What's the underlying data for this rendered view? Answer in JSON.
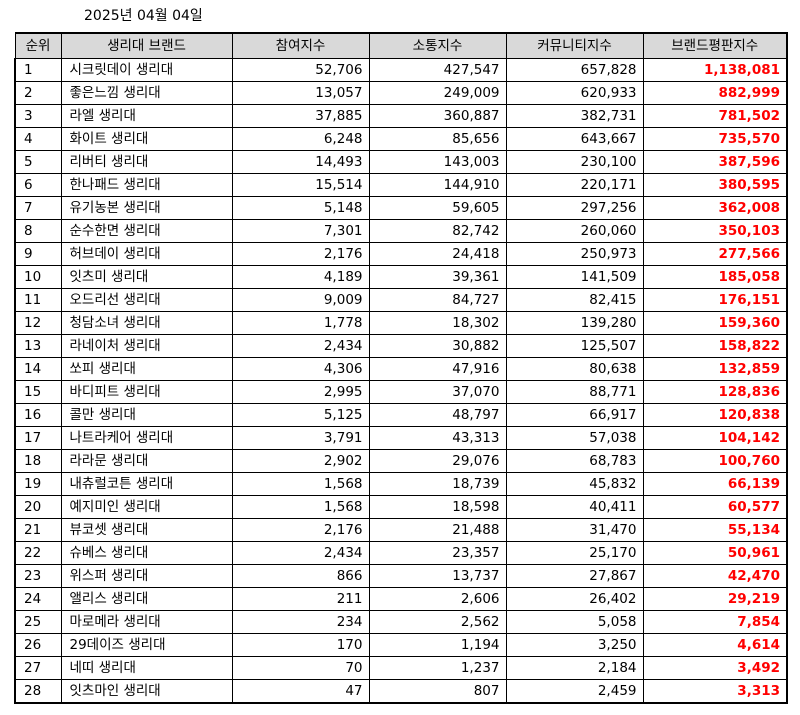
{
  "date": "2025년 04월 04일",
  "headers": [
    "순위",
    "생리대 브랜드",
    "참여지수",
    "소통지수",
    "커뮤니티지수",
    "브랜드평판지수"
  ],
  "rows": [
    {
      "rank": "1",
      "brand": "시크릿데이 생리대",
      "participation": "52,706",
      "communication": "427,547",
      "community": "657,828",
      "bpi": "1,138,081"
    },
    {
      "rank": "2",
      "brand": "좋은느낌 생리대",
      "participation": "13,057",
      "communication": "249,009",
      "community": "620,933",
      "bpi": "882,999"
    },
    {
      "rank": "3",
      "brand": "라엘 생리대",
      "participation": "37,885",
      "communication": "360,887",
      "community": "382,731",
      "bpi": "781,502"
    },
    {
      "rank": "4",
      "brand": "화이트 생리대",
      "participation": "6,248",
      "communication": "85,656",
      "community": "643,667",
      "bpi": "735,570"
    },
    {
      "rank": "5",
      "brand": "리버티 생리대",
      "participation": "14,493",
      "communication": "143,003",
      "community": "230,100",
      "bpi": "387,596"
    },
    {
      "rank": "6",
      "brand": "한나패드 생리대",
      "participation": "15,514",
      "communication": "144,910",
      "community": "220,171",
      "bpi": "380,595"
    },
    {
      "rank": "7",
      "brand": "유기농본 생리대",
      "participation": "5,148",
      "communication": "59,605",
      "community": "297,256",
      "bpi": "362,008"
    },
    {
      "rank": "8",
      "brand": "순수한면 생리대",
      "participation": "7,301",
      "communication": "82,742",
      "community": "260,060",
      "bpi": "350,103"
    },
    {
      "rank": "9",
      "brand": "허브데이 생리대",
      "participation": "2,176",
      "communication": "24,418",
      "community": "250,973",
      "bpi": "277,566"
    },
    {
      "rank": "10",
      "brand": "잇츠미 생리대",
      "participation": "4,189",
      "communication": "39,361",
      "community": "141,509",
      "bpi": "185,058"
    },
    {
      "rank": "11",
      "brand": "오드리선 생리대",
      "participation": "9,009",
      "communication": "84,727",
      "community": "82,415",
      "bpi": "176,151"
    },
    {
      "rank": "12",
      "brand": "청담소녀 생리대",
      "participation": "1,778",
      "communication": "18,302",
      "community": "139,280",
      "bpi": "159,360"
    },
    {
      "rank": "13",
      "brand": "라네이처 생리대",
      "participation": "2,434",
      "communication": "30,882",
      "community": "125,507",
      "bpi": "158,822"
    },
    {
      "rank": "14",
      "brand": "쏘피 생리대",
      "participation": "4,306",
      "communication": "47,916",
      "community": "80,638",
      "bpi": "132,859"
    },
    {
      "rank": "15",
      "brand": "바디피트 생리대",
      "participation": "2,995",
      "communication": "37,070",
      "community": "88,771",
      "bpi": "128,836"
    },
    {
      "rank": "16",
      "brand": "콜만 생리대",
      "participation": "5,125",
      "communication": "48,797",
      "community": "66,917",
      "bpi": "120,838"
    },
    {
      "rank": "17",
      "brand": "나트라케어 생리대",
      "participation": "3,791",
      "communication": "43,313",
      "community": "57,038",
      "bpi": "104,142"
    },
    {
      "rank": "18",
      "brand": "라라문 생리대",
      "participation": "2,902",
      "communication": "29,076",
      "community": "68,783",
      "bpi": "100,760"
    },
    {
      "rank": "19",
      "brand": "내츄럴코튼 생리대",
      "participation": "1,568",
      "communication": "18,739",
      "community": "45,832",
      "bpi": "66,139"
    },
    {
      "rank": "20",
      "brand": "예지미인 생리대",
      "participation": "1,568",
      "communication": "18,598",
      "community": "40,411",
      "bpi": "60,577"
    },
    {
      "rank": "21",
      "brand": "뷰코셋 생리대",
      "participation": "2,176",
      "communication": "21,488",
      "community": "31,470",
      "bpi": "55,134"
    },
    {
      "rank": "22",
      "brand": "슈베스 생리대",
      "participation": "2,434",
      "communication": "23,357",
      "community": "25,170",
      "bpi": "50,961"
    },
    {
      "rank": "23",
      "brand": "위스퍼 생리대",
      "participation": "866",
      "communication": "13,737",
      "community": "27,867",
      "bpi": "42,470"
    },
    {
      "rank": "24",
      "brand": "앨리스 생리대",
      "participation": "211",
      "communication": "2,606",
      "community": "26,402",
      "bpi": "29,219"
    },
    {
      "rank": "25",
      "brand": "마로메라 생리대",
      "participation": "234",
      "communication": "2,562",
      "community": "5,058",
      "bpi": "7,854"
    },
    {
      "rank": "26",
      "brand": "29데이즈 생리대",
      "participation": "170",
      "communication": "1,194",
      "community": "3,250",
      "bpi": "4,614"
    },
    {
      "rank": "27",
      "brand": "네띠 생리대",
      "participation": "70",
      "communication": "1,237",
      "community": "2,184",
      "bpi": "3,492"
    },
    {
      "rank": "28",
      "brand": "잇츠마인 생리대",
      "participation": "47",
      "communication": "807",
      "community": "2,459",
      "bpi": "3,313"
    }
  ],
  "colors": {
    "header_bg": "#d9d9d9",
    "bpi_text": "#ff0000",
    "border": "#000000"
  }
}
